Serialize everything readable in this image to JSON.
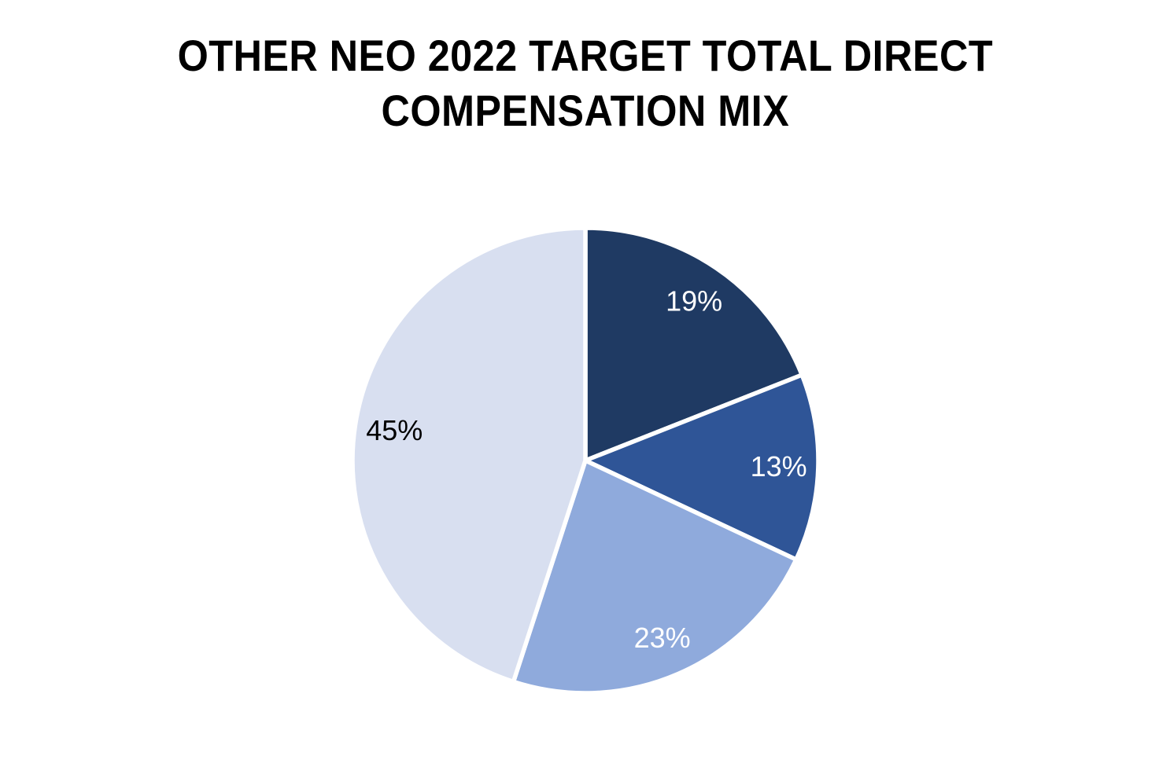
{
  "page": {
    "background": "#FFFFFF"
  },
  "title": {
    "line1": "OTHER NEO 2022 TARGET TOTAL DIRECT",
    "line2": "COMPENSATION MIX",
    "color": "#000000"
  },
  "chart_data": {
    "type": "pie",
    "title": "OTHER NEO 2022 TARGET TOTAL DIRECT COMPENSATION MIX",
    "start_angle_deg": 0,
    "direction": "clockwise",
    "legend": "none",
    "grid": "off",
    "separator_color": "#FFFFFF",
    "label_radius_ratio": 0.83,
    "slices": [
      {
        "label": "19%",
        "value": 19,
        "color": "#1F3A63",
        "label_color": "#FFFFFF"
      },
      {
        "label": "13%",
        "value": 13,
        "color": "#2F5597",
        "label_color": "#FFFFFF"
      },
      {
        "label": "23%",
        "value": 23,
        "color": "#8FAADC",
        "label_color": "#FFFFFF"
      },
      {
        "label": "45%",
        "value": 45,
        "color": "#D8DFF0",
        "label_color": "#000000"
      }
    ]
  }
}
